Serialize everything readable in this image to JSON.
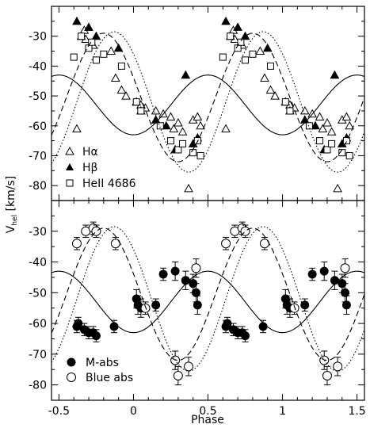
{
  "chart_data": [
    {
      "type": "scatter",
      "panel": "top",
      "xlim": [
        -0.55,
        1.55
      ],
      "ylim": [
        -85,
        -20
      ],
      "yticks": [
        -30,
        -40,
        -50,
        -60,
        -70,
        -80
      ],
      "grid": false,
      "legend_position": "bottom-left",
      "series": [
        {
          "name": "Hα",
          "marker": "triangle-open",
          "x": [
            -0.38,
            -0.33,
            -0.32,
            -0.27,
            -0.15,
            -0.12,
            -0.08,
            -0.05,
            0.02,
            0.05,
            0.08,
            0.15,
            0.2,
            0.25,
            0.27,
            0.3,
            0.33,
            0.37,
            0.4,
            0.43,
            0.45
          ],
          "y": [
            -61,
            -28,
            -31,
            -33,
            -35,
            -44,
            -48,
            -50,
            -52,
            -53,
            -54,
            -55,
            -56,
            -57,
            -61,
            -59,
            -62,
            -81,
            -58,
            -57,
            -60
          ]
        },
        {
          "name": "Hβ",
          "marker": "triangle-filled",
          "x": [
            -0.38,
            -0.35,
            -0.3,
            -0.25,
            -0.1,
            0.02,
            0.05,
            0.15,
            0.22,
            0.28,
            0.35,
            0.4,
            0.43
          ],
          "y": [
            -25,
            -30,
            -27,
            -30,
            -34,
            -52,
            -55,
            -58,
            -60,
            -68,
            -43,
            -66,
            -64
          ]
        },
        {
          "name": "HeII 4686",
          "marker": "square-open",
          "x": [
            -0.4,
            -0.35,
            -0.3,
            -0.28,
            -0.25,
            -0.2,
            -0.08,
            0.02,
            0.05,
            0.18,
            0.25,
            0.3,
            0.33,
            0.4,
            0.43,
            0.45
          ],
          "y": [
            -37,
            -30,
            -34,
            -32,
            -38,
            -36,
            -40,
            -52,
            -55,
            -60,
            -65,
            -68,
            -66,
            -69,
            -65,
            -70
          ]
        }
      ],
      "curves": [
        {
          "style": "solid",
          "mean": -53,
          "amplitude": 10,
          "min_phase": 0.0
        },
        {
          "style": "dashed",
          "mean": -50.5,
          "amplitude": 21.5,
          "min_phase": 0.3
        },
        {
          "style": "dotted",
          "mean": -52,
          "amplitude": 23.5,
          "min_phase": 0.37
        }
      ],
      "legend": [
        "Hα",
        "Hβ",
        "HeII 4686"
      ]
    },
    {
      "type": "scatter",
      "panel": "bottom",
      "xlim": [
        -0.55,
        1.55
      ],
      "ylim": [
        -85,
        -20
      ],
      "yticks": [
        -30,
        -40,
        -50,
        -60,
        -70,
        -80
      ],
      "xticks": [
        -0.5,
        0,
        0.5,
        1,
        1.5
      ],
      "xlabel": "Phase",
      "ylabel": "Vhel [km/s]",
      "grid": false,
      "legend_position": "bottom-left",
      "series": [
        {
          "name": "M-abs",
          "marker": "circle-filled",
          "x": [
            -0.38,
            -0.37,
            -0.33,
            -0.3,
            -0.27,
            -0.25,
            -0.13,
            0.02,
            0.03,
            0.05,
            0.15,
            0.2,
            0.28,
            0.35,
            0.4,
            0.42,
            0.43
          ],
          "y": [
            -61,
            -60,
            -62,
            -63,
            -63,
            -64,
            -61,
            -52,
            -54,
            -55,
            -54,
            -44,
            -43,
            -46,
            -47,
            -50,
            -54
          ],
          "err": [
            2,
            2,
            2,
            2,
            2,
            2,
            2,
            3,
            3,
            3,
            2,
            2,
            3,
            3,
            3,
            3,
            3
          ]
        },
        {
          "name": "Blue abs",
          "marker": "circle-open",
          "x": [
            -0.38,
            -0.32,
            -0.27,
            -0.25,
            -0.12,
            0.08,
            0.28,
            0.3,
            0.37,
            0.42
          ],
          "y": [
            -34,
            -30,
            -29,
            -30,
            -34,
            -55,
            -72,
            -77,
            -74,
            -42
          ],
          "err": [
            2,
            2,
            2,
            2,
            2,
            2,
            3,
            3,
            3,
            3
          ]
        }
      ],
      "curves": [
        {
          "style": "solid",
          "mean": -53,
          "amplitude": 10,
          "min_phase": 0.0
        },
        {
          "style": "dashed",
          "mean": -50.5,
          "amplitude": 21.5,
          "min_phase": 0.3
        },
        {
          "style": "dotted",
          "mean": -52,
          "amplitude": 23.5,
          "min_phase": 0.37
        }
      ],
      "legend": [
        "M-abs",
        "Blue abs"
      ]
    }
  ],
  "labels": {
    "xlabel": "Phase",
    "ylabel_main": "V",
    "ylabel_sub": "hel",
    "ylabel_unit": " [km/s]",
    "xticks": [
      "-0.5",
      "0",
      "0.5",
      "1",
      "1.5"
    ],
    "yticks": [
      "-30",
      "-40",
      "-50",
      "-60",
      "-70",
      "-80"
    ],
    "legend_top": [
      "Hα",
      "Hβ",
      "HeII 4686"
    ],
    "legend_bottom": [
      "M-abs",
      "Blue abs"
    ]
  }
}
